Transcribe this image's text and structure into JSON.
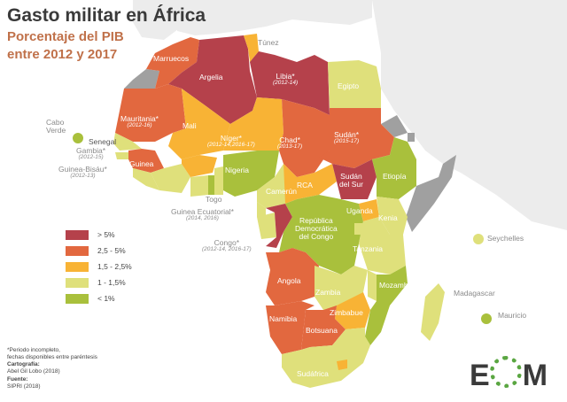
{
  "title": "Gasto militar en África",
  "subtitle1": "Porcentaje del PIB",
  "subtitle2": "entre 2012 y 2017",
  "colors": {
    "c1": "#b5414b",
    "c2": "#e2683f",
    "c3": "#f8b335",
    "c4": "#dfe07b",
    "c5": "#a9c03c",
    "nodata": "#a0a0a0",
    "land": "#ececec",
    "sea": "#ffffff"
  },
  "legend": [
    {
      "label": "> 5%",
      "color": "#b5414b"
    },
    {
      "label": "2,5 - 5%",
      "color": "#e2683f"
    },
    {
      "label": "1,5 - 2,5%",
      "color": "#f8b335"
    },
    {
      "label": "1 - 1,5%",
      "color": "#dfe07b"
    },
    {
      "label": "< 1%",
      "color": "#a9c03c"
    }
  ],
  "countries": {
    "marruecos": "Marruecos",
    "tunez": "Túnez",
    "argelia": "Argelia",
    "libia": "Libia*",
    "libia_note": "(2012-14)",
    "egipto": "Egipto",
    "caboverde1": "Cabo",
    "caboverde2": "Verde",
    "mauritania": "Mauritania*",
    "mauritania_note": "(2012-16)",
    "senegal": "Senegal",
    "gambia": "Gambia*",
    "gambia_note": "(2012-15)",
    "guineabisau": "Guinea-Bisáu*",
    "guineabisau_note": "(2012-13)",
    "guinea": "Guinea",
    "mali": "Mali",
    "niger": "Níger*",
    "niger_note": "(2012-14,2016-17)",
    "chad": "Chad*",
    "chad_note": "(2013-17)",
    "sudan": "Sudán*",
    "sudan_note": "(2015-17)",
    "sudansur1": "Sudán",
    "sudansur2": "del Sur",
    "etiopia": "Etiopía",
    "nigeria": "Nigeria",
    "togo": "Togo",
    "camerun": "Camerún",
    "rca": "RCA",
    "guineaec": "Guinea Ecuatorial*",
    "guineaec_note": "(2014, 2016)",
    "uganda": "Uganda",
    "kenia": "Kenia",
    "rdc1": "República",
    "rdc2": "Democrática",
    "rdc3": "del Congo",
    "congo": "Congo*",
    "congo_note": "(2012-14, 2016-17)",
    "tanzania": "Tanzania",
    "seychelles": "Seychelles",
    "angola": "Angola",
    "zambia": "Zambia",
    "mozambique": "Mozambique",
    "madagascar": "Madagascar",
    "mauricio": "Mauricio",
    "zimbabue": "Zimbabue",
    "namibia": "Namibia",
    "botsuana": "Botsuana",
    "sudafrica": "Sudáfrica"
  },
  "notes": {
    "n1": "*Periodo incompleto,",
    "n2": "fechas disponibles entre paréntesis",
    "cart_label": "Cartografía:",
    "cart_value": "Abel Gil Lobo (2018)",
    "src_label": "Fuente:",
    "src_value": "SIPRI (2018)"
  },
  "logo": {
    "l1": "E",
    "l2": "M"
  }
}
